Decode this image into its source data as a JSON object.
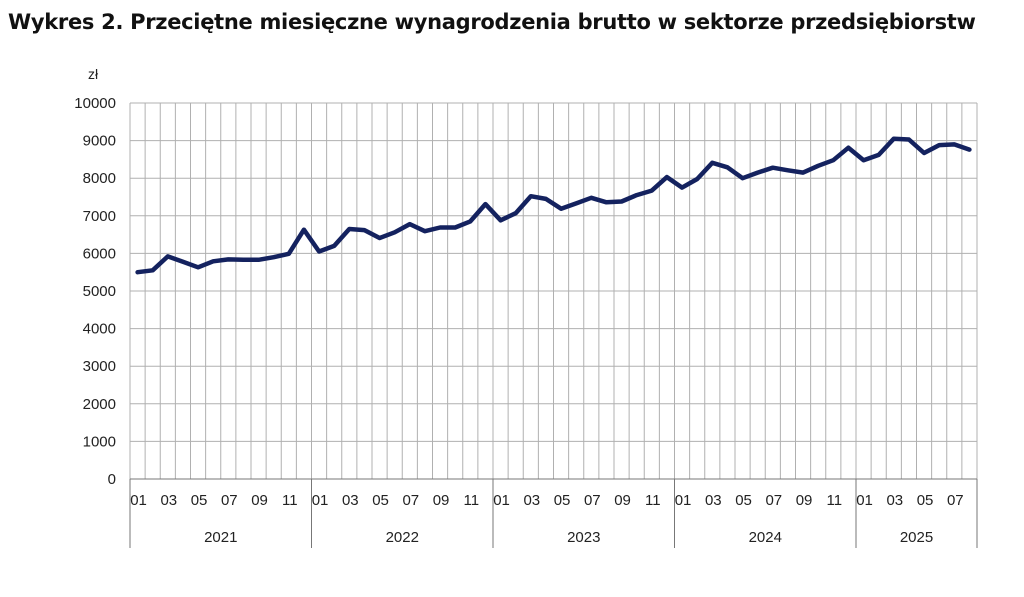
{
  "title": "Wykres 2. Przeciętne miesięczne wynagrodzenia brutto w sektorze przedsiębiorstw",
  "colors": {
    "line": "#14225f",
    "grid": "#b0b0b0",
    "axis": "#777777"
  },
  "chart_data": {
    "type": "line",
    "title": "Wykres 2. Przeciętne miesięczne wynagrodzenia brutto w sektorze przedsiębiorstw",
    "ylabel": "zł",
    "ylim": [
      0,
      10000
    ],
    "yticks": [
      "0",
      "1000",
      "2000",
      "3000",
      "4000",
      "5000",
      "6000",
      "7000",
      "8000",
      "9000",
      "10000"
    ],
    "grid": true,
    "month_labels": [
      "01",
      "03",
      "05",
      "07",
      "09",
      "11"
    ],
    "years": [
      "2021",
      "2022",
      "2023",
      "2024",
      "2025"
    ],
    "x": [
      "2021-01",
      "2021-02",
      "2021-03",
      "2021-04",
      "2021-05",
      "2021-06",
      "2021-07",
      "2021-08",
      "2021-09",
      "2021-10",
      "2021-11",
      "2021-12",
      "2022-01",
      "2022-02",
      "2022-03",
      "2022-04",
      "2022-05",
      "2022-06",
      "2022-07",
      "2022-08",
      "2022-09",
      "2022-10",
      "2022-11",
      "2022-12",
      "2023-01",
      "2023-02",
      "2023-03",
      "2023-04",
      "2023-05",
      "2023-06",
      "2023-07",
      "2023-08",
      "2023-09",
      "2023-10",
      "2023-11",
      "2023-12",
      "2024-01",
      "2024-02",
      "2024-03",
      "2024-04",
      "2024-05",
      "2024-06",
      "2024-07",
      "2024-08",
      "2024-09",
      "2024-10",
      "2024-11",
      "2024-12",
      "2025-01",
      "2025-02",
      "2025-03",
      "2025-04",
      "2025-05",
      "2025-06",
      "2025-07",
      "2025-08"
    ],
    "series": [
      {
        "values": [
          5500,
          5550,
          5920,
          5780,
          5630,
          5790,
          5840,
          5830,
          5830,
          5900,
          5990,
          6630,
          6050,
          6200,
          6650,
          6620,
          6410,
          6560,
          6780,
          6590,
          6690,
          6690,
          6850,
          7310,
          6880,
          7070,
          7520,
          7450,
          7190,
          7330,
          7480,
          7360,
          7380,
          7550,
          7670,
          8030,
          7750,
          7980,
          8410,
          8290,
          8000,
          8150,
          8280,
          8210,
          8150,
          8330,
          8480,
          8810,
          8480,
          8620,
          9050,
          9030,
          8670,
          8880,
          8900,
          8760
        ]
      }
    ]
  }
}
